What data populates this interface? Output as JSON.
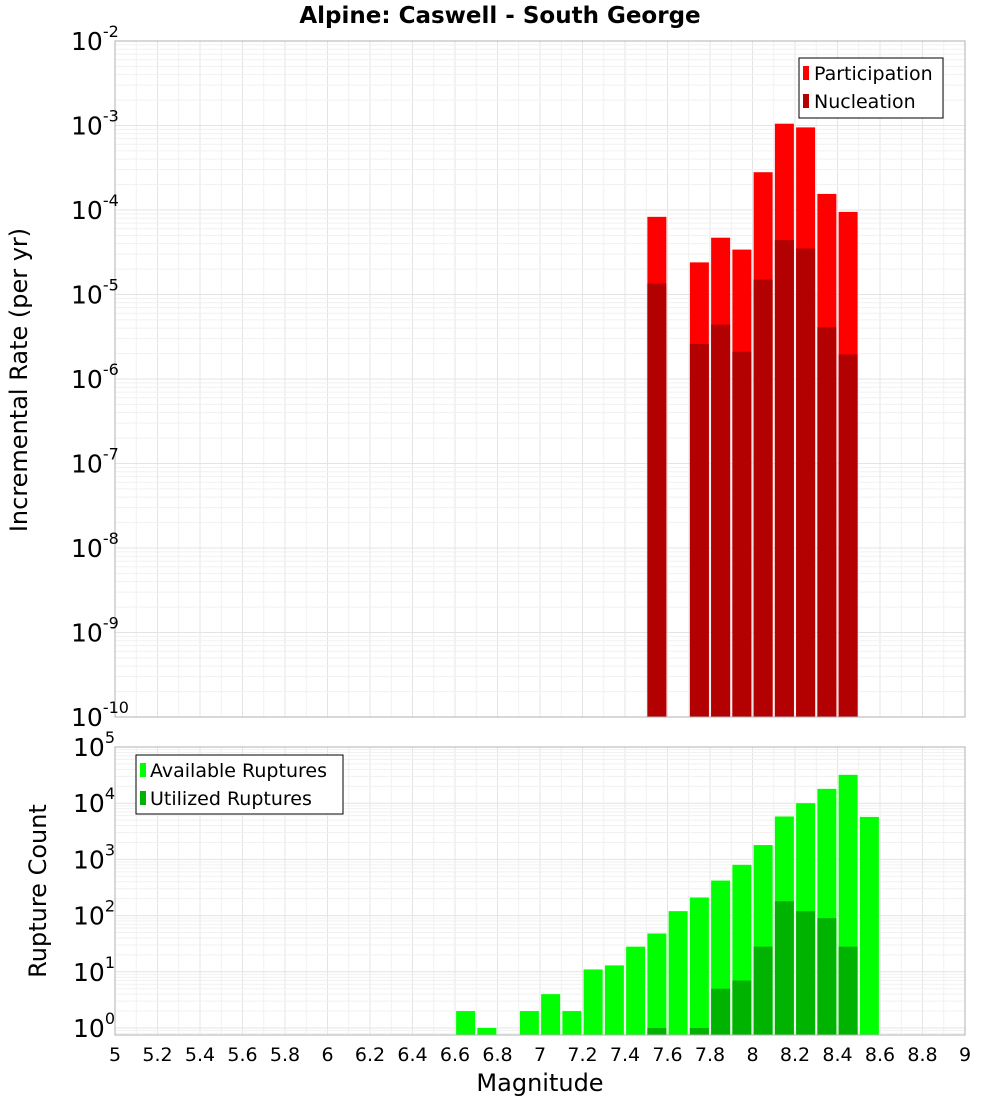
{
  "chart_data": [
    {
      "type": "bar",
      "title": "Alpine: Caswell - South George",
      "ylabel": "Incremental Rate (per yr)",
      "yscale": "log",
      "ylim": [
        1e-10,
        0.01
      ],
      "xlim": [
        5,
        9
      ],
      "legend_position": "top-right",
      "grid": true,
      "series": [
        {
          "name": "Participation",
          "color": "#ff0000",
          "x": [
            7.55,
            7.75,
            7.85,
            7.95,
            8.05,
            8.15,
            8.25,
            8.35,
            8.45
          ],
          "values": [
            8.3e-05,
            2.4e-05,
            4.7e-05,
            3.4e-05,
            0.00028,
            0.00105,
            0.00095,
            0.000155,
            9.5e-05
          ]
        },
        {
          "name": "Nucleation",
          "color": "#b30000",
          "x": [
            7.55,
            7.75,
            7.85,
            7.95,
            8.05,
            8.15,
            8.25,
            8.35,
            8.45
          ],
          "values": [
            1.35e-05,
            2.6e-06,
            4.4e-06,
            2.1e-06,
            1.5e-05,
            4.4e-05,
            3.5e-05,
            4.1e-06,
            1.95e-06
          ]
        }
      ]
    },
    {
      "type": "bar",
      "title": "",
      "xlabel": "Magnitude",
      "ylabel": "Rupture Count",
      "yscale": "log",
      "ylim": [
        0.75,
        100000.0
      ],
      "xlim": [
        5,
        9
      ],
      "xticks": [
        "5",
        "5.2",
        "5.4",
        "5.6",
        "5.8",
        "6",
        "6.2",
        "6.4",
        "6.6",
        "6.8",
        "7",
        "7.2",
        "7.4",
        "7.6",
        "7.8",
        "8",
        "8.2",
        "8.4",
        "8.6",
        "8.8",
        "9"
      ],
      "legend_position": "top-left",
      "grid": true,
      "series": [
        {
          "name": "Available Ruptures",
          "color": "#00ff00",
          "x": [
            6.65,
            6.75,
            6.95,
            7.05,
            7.15,
            7.25,
            7.35,
            7.45,
            7.55,
            7.65,
            7.75,
            7.85,
            7.95,
            8.05,
            8.15,
            8.25,
            8.35,
            8.45,
            8.55
          ],
          "values": [
            2,
            1,
            2,
            4,
            2,
            11,
            13,
            28,
            48,
            120,
            210,
            420,
            800,
            1800,
            5800,
            10000,
            18000,
            32000,
            5700
          ]
        },
        {
          "name": "Utilized Ruptures",
          "color": "#00b300",
          "x": [
            7.55,
            7.75,
            7.85,
            7.95,
            8.05,
            8.15,
            8.25,
            8.35,
            8.45
          ],
          "values": [
            1,
            1,
            5,
            7,
            28,
            180,
            120,
            90,
            28
          ]
        }
      ]
    }
  ]
}
